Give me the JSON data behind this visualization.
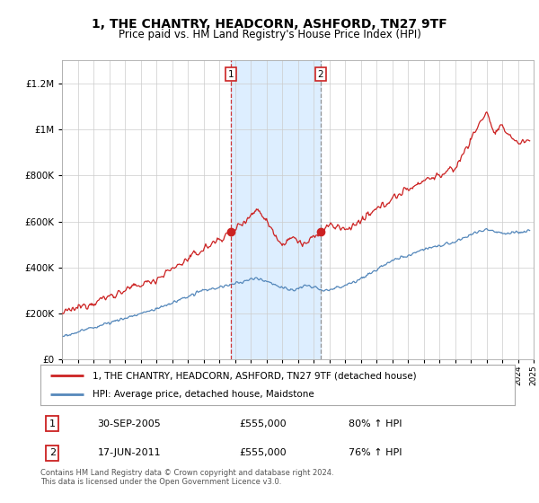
{
  "title": "1, THE CHANTRY, HEADCORN, ASHFORD, TN27 9TF",
  "subtitle": "Price paid vs. HM Land Registry's House Price Index (HPI)",
  "legend_line1": "1, THE CHANTRY, HEADCORN, ASHFORD, TN27 9TF (detached house)",
  "legend_line2": "HPI: Average price, detached house, Maidstone",
  "transaction1_label": "1",
  "transaction1_date": "30-SEP-2005",
  "transaction1_price": "£555,000",
  "transaction1_hpi": "80% ↑ HPI",
  "transaction2_label": "2",
  "transaction2_date": "17-JUN-2011",
  "transaction2_price": "£555,000",
  "transaction2_hpi": "76% ↑ HPI",
  "footer": "Contains HM Land Registry data © Crown copyright and database right 2024.\nThis data is licensed under the Open Government Licence v3.0.",
  "hpi_color": "#5588bb",
  "price_color": "#cc2222",
  "shaded_color": "#ddeeff",
  "marker1_x": 2005.75,
  "marker2_x": 2011.46,
  "marker1_y": 555000,
  "marker2_y": 555000,
  "ylim": [
    0,
    1300000
  ],
  "xlim_start": 1995,
  "xlim_end": 2025,
  "figwidth": 6.0,
  "figheight": 5.6,
  "dpi": 100
}
